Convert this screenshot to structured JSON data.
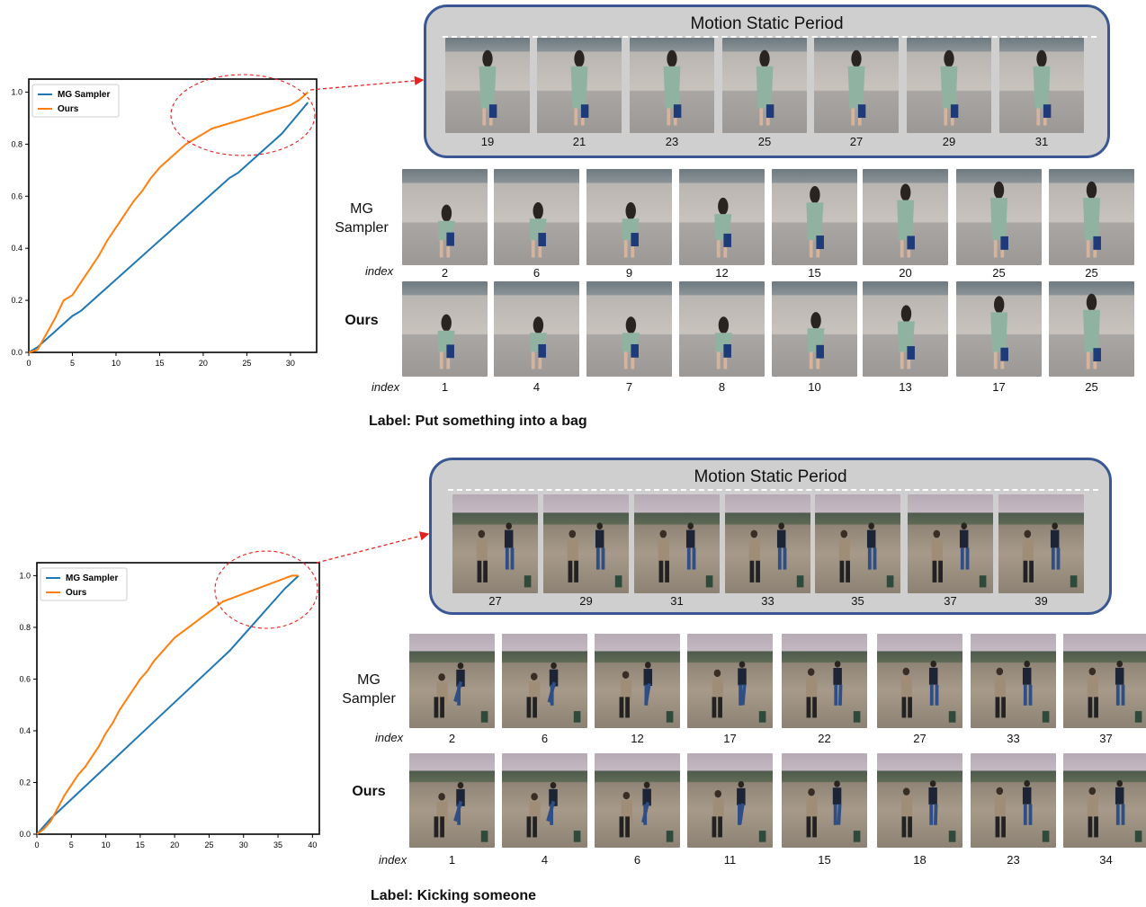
{
  "chart_data": [
    {
      "type": "line",
      "title": "",
      "xlabel": "",
      "ylabel": "",
      "xlim": [
        0,
        33
      ],
      "ylim": [
        0,
        1.05
      ],
      "xticks": [
        0,
        5,
        10,
        15,
        20,
        25,
        30
      ],
      "yticks": [
        0.0,
        0.2,
        0.4,
        0.6,
        0.8,
        1.0
      ],
      "legend": "top-left",
      "series": [
        {
          "name": "MG Sampler",
          "color": "#1f77b4",
          "x": [
            0,
            1,
            2,
            3,
            4,
            5,
            6,
            7,
            8,
            9,
            10,
            11,
            12,
            13,
            14,
            15,
            16,
            17,
            18,
            19,
            20,
            21,
            22,
            23,
            24,
            25,
            26,
            27,
            28,
            29,
            30,
            31,
            32
          ],
          "y": [
            0.0,
            0.02,
            0.05,
            0.08,
            0.11,
            0.14,
            0.16,
            0.19,
            0.22,
            0.25,
            0.28,
            0.31,
            0.34,
            0.37,
            0.4,
            0.43,
            0.46,
            0.49,
            0.52,
            0.55,
            0.58,
            0.61,
            0.64,
            0.67,
            0.69,
            0.72,
            0.75,
            0.78,
            0.81,
            0.84,
            0.88,
            0.92,
            0.96
          ]
        },
        {
          "name": "Ours",
          "color": "#ff7f0e",
          "x": [
            0,
            1,
            2,
            3,
            4,
            5,
            6,
            7,
            8,
            9,
            10,
            11,
            12,
            13,
            14,
            15,
            16,
            17,
            18,
            19,
            20,
            21,
            22,
            23,
            24,
            25,
            26,
            27,
            28,
            29,
            30,
            31,
            32
          ],
          "y": [
            0.0,
            0.01,
            0.07,
            0.13,
            0.2,
            0.22,
            0.27,
            0.32,
            0.37,
            0.43,
            0.48,
            0.53,
            0.58,
            0.62,
            0.67,
            0.71,
            0.74,
            0.77,
            0.8,
            0.82,
            0.84,
            0.86,
            0.87,
            0.88,
            0.89,
            0.9,
            0.91,
            0.92,
            0.93,
            0.94,
            0.95,
            0.97,
            1.0
          ]
        }
      ]
    },
    {
      "type": "line",
      "title": "",
      "xlabel": "",
      "ylabel": "",
      "xlim": [
        0,
        41
      ],
      "ylim": [
        0,
        1.05
      ],
      "xticks": [
        0,
        5,
        10,
        15,
        20,
        25,
        30,
        35,
        40
      ],
      "yticks": [
        0.0,
        0.2,
        0.4,
        0.6,
        0.8,
        1.0
      ],
      "legend": "top-left",
      "series": [
        {
          "name": "MG Sampler",
          "color": "#1f77b4",
          "x": [
            0,
            2,
            4,
            6,
            8,
            10,
            12,
            14,
            16,
            18,
            20,
            22,
            24,
            26,
            28,
            30,
            32,
            34,
            36,
            38
          ],
          "y": [
            0.0,
            0.06,
            0.11,
            0.16,
            0.21,
            0.26,
            0.31,
            0.36,
            0.41,
            0.46,
            0.51,
            0.56,
            0.61,
            0.66,
            0.71,
            0.77,
            0.83,
            0.89,
            0.95,
            1.0
          ]
        },
        {
          "name": "Ours",
          "color": "#ff7f0e",
          "x": [
            0,
            1,
            2,
            3,
            4,
            5,
            6,
            7,
            8,
            9,
            10,
            11,
            12,
            13,
            14,
            15,
            16,
            17,
            18,
            19,
            20,
            21,
            22,
            23,
            24,
            25,
            26,
            27,
            28,
            29,
            30,
            31,
            32,
            33,
            34,
            35,
            36,
            37,
            38
          ],
          "y": [
            0.0,
            0.02,
            0.05,
            0.1,
            0.15,
            0.19,
            0.23,
            0.26,
            0.3,
            0.34,
            0.39,
            0.43,
            0.48,
            0.52,
            0.56,
            0.6,
            0.63,
            0.67,
            0.7,
            0.73,
            0.76,
            0.78,
            0.8,
            0.82,
            0.84,
            0.86,
            0.88,
            0.9,
            0.91,
            0.92,
            0.93,
            0.94,
            0.95,
            0.96,
            0.97,
            0.98,
            0.99,
            1.0,
            1.0
          ]
        }
      ]
    }
  ],
  "top": {
    "panel_title": "Motion Static Period",
    "static_frames": [
      "19",
      "21",
      "23",
      "25",
      "27",
      "29",
      "31"
    ],
    "mg_label": "MG\nSampler",
    "mg_frames": [
      "2",
      "6",
      "9",
      "12",
      "15",
      "20",
      "25",
      "25"
    ],
    "ours_label": "Ours",
    "ours_frames": [
      "1",
      "4",
      "7",
      "8",
      "10",
      "13",
      "17",
      "25"
    ],
    "index_label": "index",
    "caption": "Label: Put something into a bag"
  },
  "bottom": {
    "panel_title": "Motion Static Period",
    "static_frames": [
      "27",
      "29",
      "31",
      "33",
      "35",
      "37",
      "39"
    ],
    "mg_label": "MG\nSampler",
    "mg_frames": [
      "2",
      "6",
      "12",
      "17",
      "22",
      "27",
      "33",
      "37"
    ],
    "ours_label": "Ours",
    "ours_frames": [
      "1",
      "4",
      "6",
      "11",
      "15",
      "18",
      "23",
      "34"
    ],
    "index_label": "index",
    "caption": "Label: Kicking someone"
  }
}
